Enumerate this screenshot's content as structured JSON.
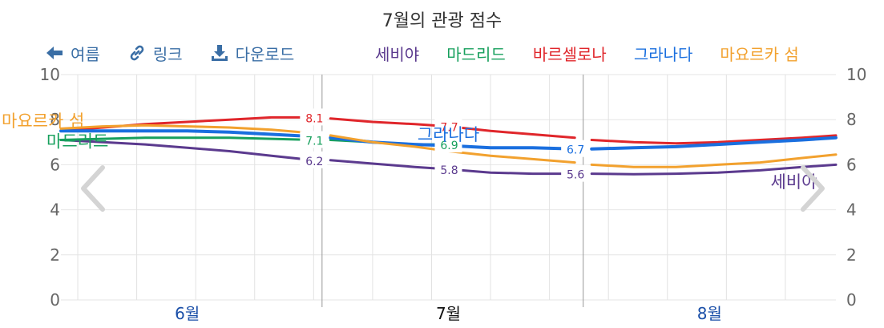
{
  "page": {
    "title": "7월의 관광 점수"
  },
  "toolbar": {
    "back_label": "여름",
    "link_label": "링크",
    "download_label": "다운로드"
  },
  "legend_items": [
    {
      "label": "세비야",
      "color": "#5b3a8e"
    },
    {
      "label": "마드리드",
      "color": "#17a05d"
    },
    {
      "label": "바르셀로나",
      "color": "#e0262b"
    },
    {
      "label": "그라나다",
      "color": "#1a6fdf"
    },
    {
      "label": "마요르카 섬",
      "color": "#f2a12e"
    }
  ],
  "chart_data": {
    "type": "line",
    "title": "7월의 관광 점수",
    "x_axis": {
      "type": "date",
      "range": [
        "2023-05-31",
        "2023-08-31"
      ],
      "ticks": [
        "6월",
        "7월",
        "8월"
      ],
      "current": "7월"
    },
    "ylim": [
      0,
      10
    ],
    "yticks": [
      0,
      2,
      4,
      6,
      8,
      10
    ],
    "grid": true,
    "gap_dates": [
      "2023-07-01",
      "2023-08-01"
    ],
    "series": [
      {
        "name": "세비야",
        "color": "#5b3a8e",
        "points": [
          [
            "2023-05-31",
            7.1
          ],
          [
            "2023-06-05",
            7.0
          ],
          [
            "2023-06-10",
            6.9
          ],
          [
            "2023-06-15",
            6.75
          ],
          [
            "2023-06-20",
            6.6
          ],
          [
            "2023-06-25",
            6.4
          ],
          [
            "2023-06-30",
            6.2
          ],
          [
            "2023-07-02",
            6.2
          ],
          [
            "2023-07-07",
            6.05
          ],
          [
            "2023-07-12",
            5.9
          ],
          [
            "2023-07-16",
            5.8
          ],
          [
            "2023-07-21",
            5.65
          ],
          [
            "2023-07-26",
            5.6
          ],
          [
            "2023-07-31",
            5.6
          ],
          [
            "2023-08-02",
            5.6
          ],
          [
            "2023-08-07",
            5.58
          ],
          [
            "2023-08-12",
            5.6
          ],
          [
            "2023-08-17",
            5.65
          ],
          [
            "2023-08-22",
            5.75
          ],
          [
            "2023-08-27",
            5.9
          ],
          [
            "2023-08-31",
            6.0
          ]
        ],
        "labels": [
          [
            "2023-06-30",
            "6.2"
          ],
          [
            "2023-07-16",
            "5.8"
          ],
          [
            "2023-07-31",
            "5.6"
          ]
        ]
      },
      {
        "name": "마드리드",
        "color": "#17a05d",
        "points": [
          [
            "2023-05-31",
            7.1
          ],
          [
            "2023-06-05",
            7.15
          ],
          [
            "2023-06-10",
            7.2
          ],
          [
            "2023-06-15",
            7.2
          ],
          [
            "2023-06-20",
            7.2
          ],
          [
            "2023-06-25",
            7.15
          ],
          [
            "2023-06-30",
            7.1
          ],
          [
            "2023-07-02",
            7.1
          ],
          [
            "2023-07-07",
            7.0
          ],
          [
            "2023-07-12",
            6.9
          ],
          [
            "2023-07-16",
            6.9
          ]
        ],
        "labels": [
          [
            "2023-06-30",
            "7.1"
          ],
          [
            "2023-07-16",
            "6.9"
          ]
        ]
      },
      {
        "name": "바르셀로나",
        "color": "#e0262b",
        "points": [
          [
            "2023-05-31",
            7.5
          ],
          [
            "2023-06-05",
            7.65
          ],
          [
            "2023-06-10",
            7.8
          ],
          [
            "2023-06-15",
            7.9
          ],
          [
            "2023-06-20",
            8.0
          ],
          [
            "2023-06-25",
            8.1
          ],
          [
            "2023-06-30",
            8.1
          ],
          [
            "2023-07-02",
            8.05
          ],
          [
            "2023-07-07",
            7.9
          ],
          [
            "2023-07-12",
            7.8
          ],
          [
            "2023-07-16",
            7.7
          ],
          [
            "2023-07-21",
            7.5
          ],
          [
            "2023-07-26",
            7.35
          ],
          [
            "2023-07-31",
            7.2
          ],
          [
            "2023-08-02",
            7.1
          ],
          [
            "2023-08-07",
            7.0
          ],
          [
            "2023-08-12",
            6.95
          ],
          [
            "2023-08-17",
            7.0
          ],
          [
            "2023-08-22",
            7.1
          ],
          [
            "2023-08-27",
            7.2
          ],
          [
            "2023-08-31",
            7.3
          ]
        ],
        "labels": [
          [
            "2023-06-30",
            "8.1"
          ],
          [
            "2023-07-16",
            "7.7"
          ]
        ]
      },
      {
        "name": "그라나다",
        "color": "#1a6fdf",
        "points": [
          [
            "2023-05-31",
            7.5
          ],
          [
            "2023-06-05",
            7.5
          ],
          [
            "2023-06-10",
            7.5
          ],
          [
            "2023-06-15",
            7.5
          ],
          [
            "2023-06-20",
            7.45
          ],
          [
            "2023-06-25",
            7.35
          ],
          [
            "2023-06-30",
            7.25
          ],
          [
            "2023-07-02",
            7.2
          ],
          [
            "2023-07-07",
            7.0
          ],
          [
            "2023-07-12",
            6.9
          ],
          [
            "2023-07-16",
            6.85
          ],
          [
            "2023-07-21",
            6.75
          ],
          [
            "2023-07-26",
            6.75
          ],
          [
            "2023-07-31",
            6.7
          ],
          [
            "2023-08-02",
            6.7
          ],
          [
            "2023-08-07",
            6.75
          ],
          [
            "2023-08-12",
            6.8
          ],
          [
            "2023-08-17",
            6.9
          ],
          [
            "2023-08-22",
            7.0
          ],
          [
            "2023-08-27",
            7.1
          ],
          [
            "2023-08-31",
            7.2
          ]
        ],
        "labels": [
          [
            "2023-07-31",
            "6.7"
          ]
        ]
      },
      {
        "name": "마요르카 섬",
        "color": "#f2a12e",
        "points": [
          [
            "2023-05-31",
            7.6
          ],
          [
            "2023-06-05",
            7.7
          ],
          [
            "2023-06-10",
            7.75
          ],
          [
            "2023-06-15",
            7.7
          ],
          [
            "2023-06-20",
            7.65
          ],
          [
            "2023-06-25",
            7.55
          ],
          [
            "2023-06-30",
            7.4
          ],
          [
            "2023-07-02",
            7.3
          ],
          [
            "2023-07-07",
            7.0
          ],
          [
            "2023-07-12",
            6.8
          ],
          [
            "2023-07-16",
            6.6
          ],
          [
            "2023-07-21",
            6.4
          ],
          [
            "2023-07-26",
            6.25
          ],
          [
            "2023-07-31",
            6.1
          ],
          [
            "2023-08-02",
            6.0
          ],
          [
            "2023-08-07",
            5.9
          ],
          [
            "2023-08-12",
            5.9
          ],
          [
            "2023-08-17",
            6.0
          ],
          [
            "2023-08-22",
            6.1
          ],
          [
            "2023-08-27",
            6.3
          ],
          [
            "2023-08-31",
            6.45
          ]
        ],
        "labels": []
      }
    ],
    "annotations": [
      {
        "text": "마요르카 섬",
        "color": "#f2a12e",
        "x": "2023-05-31",
        "y": 8.0
      },
      {
        "text": "마드리드",
        "color": "#17a05d",
        "x": "2023-05-31",
        "y": 7.1
      },
      {
        "text": "그라나다",
        "color": "#1a6fdf",
        "x": "2023-07-16",
        "y": 7.4
      },
      {
        "text": "세비야",
        "color": "#5b3a8e",
        "x": "2023-08-26",
        "y": 5.3
      }
    ]
  }
}
